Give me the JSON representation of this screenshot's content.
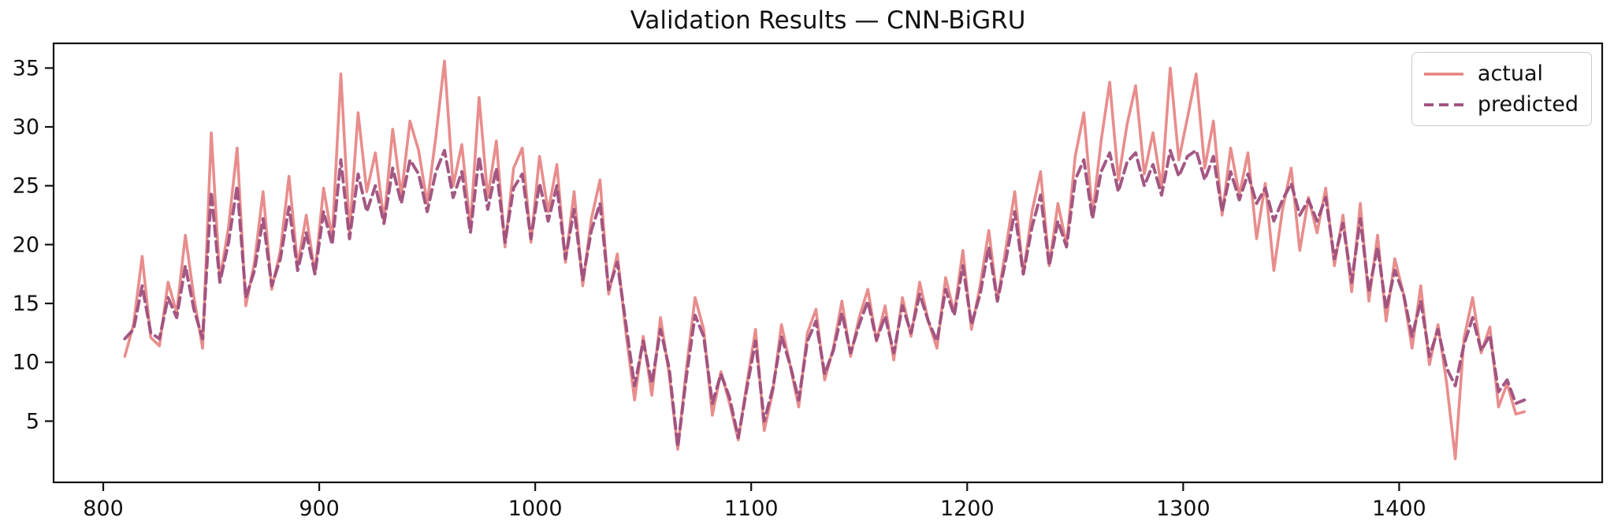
{
  "chart_data": {
    "type": "line",
    "title": "Validation Results — CNN-BiGRU",
    "xlabel": "",
    "ylabel": "",
    "xlim": [
      777,
      1494
    ],
    "ylim": [
      -0.2,
      37.1
    ],
    "x_ticks": [
      800,
      900,
      1000,
      1100,
      1200,
      1300,
      1400
    ],
    "y_ticks": [
      5,
      10,
      15,
      20,
      25,
      30,
      35
    ],
    "grid": false,
    "legend_position": "upper right",
    "x": [
      810,
      814,
      818,
      822,
      826,
      830,
      834,
      838,
      842,
      846,
      850,
      854,
      858,
      862,
      866,
      870,
      874,
      878,
      882,
      886,
      890,
      894,
      898,
      902,
      906,
      910,
      914,
      918,
      922,
      926,
      930,
      934,
      938,
      942,
      946,
      950,
      954,
      958,
      962,
      966,
      970,
      974,
      978,
      982,
      986,
      990,
      994,
      998,
      1002,
      1006,
      1010,
      1014,
      1018,
      1022,
      1026,
      1030,
      1034,
      1038,
      1042,
      1046,
      1050,
      1054,
      1058,
      1062,
      1066,
      1070,
      1074,
      1078,
      1082,
      1086,
      1090,
      1094,
      1098,
      1102,
      1106,
      1110,
      1114,
      1118,
      1122,
      1126,
      1130,
      1134,
      1138,
      1142,
      1146,
      1150,
      1154,
      1158,
      1162,
      1166,
      1170,
      1174,
      1178,
      1182,
      1186,
      1190,
      1194,
      1198,
      1202,
      1206,
      1210,
      1214,
      1218,
      1222,
      1226,
      1230,
      1234,
      1238,
      1242,
      1246,
      1250,
      1254,
      1258,
      1262,
      1266,
      1270,
      1274,
      1278,
      1282,
      1286,
      1290,
      1294,
      1298,
      1302,
      1306,
      1310,
      1314,
      1318,
      1322,
      1326,
      1330,
      1334,
      1338,
      1342,
      1346,
      1350,
      1354,
      1358,
      1362,
      1366,
      1370,
      1374,
      1378,
      1382,
      1386,
      1390,
      1394,
      1398,
      1402,
      1406,
      1410,
      1414,
      1418,
      1422,
      1426,
      1430,
      1434,
      1438,
      1442,
      1446,
      1450,
      1454,
      1458
    ],
    "series": [
      {
        "name": "actual",
        "color": "#e5817f",
        "style": "solid",
        "values": [
          10.5,
          13.2,
          19.0,
          12.1,
          11.4,
          16.8,
          14.2,
          20.8,
          15.5,
          11.2,
          29.5,
          17.0,
          21.5,
          28.2,
          14.8,
          18.5,
          24.5,
          16.2,
          19.5,
          25.8,
          18.2,
          22.5,
          17.5,
          24.8,
          20.5,
          34.5,
          21.0,
          31.2,
          24.5,
          27.8,
          22.0,
          29.8,
          24.2,
          30.5,
          28.0,
          23.5,
          29.2,
          35.6,
          25.0,
          28.5,
          21.5,
          32.5,
          24.0,
          28.8,
          19.8,
          26.5,
          28.2,
          20.2,
          27.5,
          22.8,
          26.8,
          18.5,
          24.5,
          16.5,
          22.2,
          25.5,
          15.8,
          19.2,
          12.5,
          6.8,
          12.2,
          7.2,
          13.8,
          9.0,
          2.6,
          9.5,
          15.5,
          12.8,
          5.5,
          9.2,
          6.5,
          3.4,
          8.2,
          12.8,
          4.2,
          7.5,
          13.2,
          9.8,
          6.2,
          12.5,
          14.5,
          8.5,
          11.2,
          15.2,
          10.5,
          13.8,
          16.2,
          11.8,
          14.8,
          10.2,
          15.5,
          12.2,
          16.8,
          13.5,
          11.2,
          17.2,
          14.2,
          19.5,
          12.8,
          16.5,
          21.2,
          15.2,
          19.8,
          24.5,
          17.5,
          22.8,
          26.2,
          18.2,
          23.5,
          20.0,
          27.5,
          31.2,
          22.5,
          28.8,
          33.8,
          25.5,
          30.2,
          33.5,
          26.0,
          29.5,
          24.8,
          35.0,
          27.2,
          30.8,
          34.5,
          26.5,
          30.5,
          22.5,
          28.2,
          24.2,
          27.8,
          20.5,
          25.2,
          17.8,
          23.0,
          26.5,
          19.5,
          24.0,
          21.0,
          24.8,
          18.2,
          22.5,
          16.0,
          23.5,
          15.2,
          20.8,
          13.5,
          18.8,
          15.8,
          11.2,
          16.5,
          9.8,
          13.2,
          8.2,
          1.8,
          12.0,
          15.5,
          10.8,
          13.0,
          6.2,
          8.2,
          5.6,
          5.8
        ]
      },
      {
        "name": "predicted",
        "color": "#9e4f7d",
        "style": "dashed",
        "values": [
          12.0,
          12.8,
          16.5,
          12.5,
          12.0,
          15.5,
          13.8,
          18.2,
          14.5,
          12.0,
          24.5,
          16.8,
          20.2,
          25.0,
          15.5,
          17.8,
          22.2,
          16.5,
          18.8,
          23.2,
          17.8,
          21.0,
          17.5,
          22.8,
          20.0,
          27.2,
          20.5,
          26.0,
          22.8,
          25.0,
          21.8,
          26.5,
          23.5,
          27.2,
          26.0,
          22.8,
          26.2,
          28.0,
          24.0,
          26.2,
          21.0,
          27.5,
          23.0,
          26.5,
          20.2,
          24.8,
          26.0,
          20.5,
          25.2,
          22.0,
          25.0,
          18.8,
          23.0,
          17.0,
          21.2,
          23.5,
          16.2,
          18.5,
          13.2,
          8.0,
          11.8,
          8.2,
          12.8,
          9.5,
          2.8,
          8.8,
          14.0,
          12.2,
          6.5,
          9.0,
          7.0,
          3.6,
          7.8,
          11.8,
          5.0,
          7.8,
          12.2,
          9.8,
          6.8,
          11.8,
          13.5,
          9.0,
          11.0,
          14.2,
          10.8,
          13.2,
          15.2,
          11.9,
          13.9,
          10.8,
          14.8,
          12.5,
          15.8,
          13.5,
          11.8,
          16.2,
          14.0,
          18.2,
          13.2,
          15.8,
          19.8,
          15.2,
          18.8,
          22.8,
          17.5,
          21.5,
          24.2,
          18.2,
          22.0,
          19.8,
          25.5,
          27.2,
          22.2,
          26.2,
          27.8,
          24.5,
          27.0,
          27.8,
          25.0,
          26.8,
          24.2,
          28.0,
          25.8,
          27.5,
          28.0,
          25.5,
          27.5,
          22.8,
          26.2,
          23.8,
          26.0,
          23.5,
          24.8,
          22.0,
          23.8,
          25.2,
          22.5,
          23.8,
          22.0,
          24.0,
          18.8,
          21.8,
          16.8,
          22.2,
          16.0,
          19.8,
          14.5,
          17.8,
          15.8,
          12.2,
          15.2,
          10.5,
          12.8,
          9.5,
          8.0,
          11.5,
          13.8,
          11.0,
          12.3,
          7.5,
          8.5,
          6.5,
          6.8
        ]
      }
    ]
  }
}
